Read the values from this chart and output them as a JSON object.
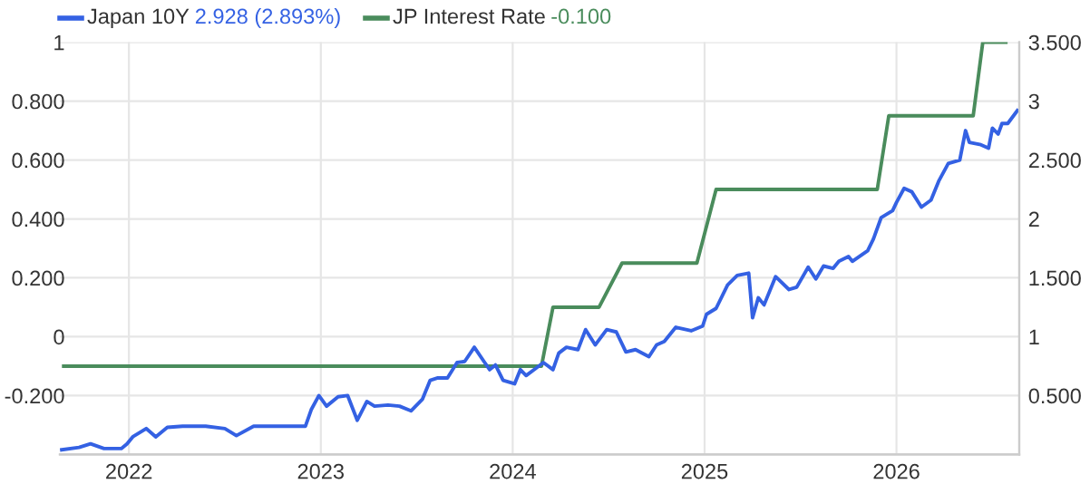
{
  "chart_data": {
    "type": "line",
    "series": [
      {
        "name": "Japan 10Y",
        "color": "#3461e3",
        "axis": "y2",
        "x": [
          2021.65,
          2021.74,
          2021.8,
          2021.87,
          2021.96,
          2021.99,
          2022.02,
          2022.09,
          2022.14,
          2022.2,
          2022.28,
          2022.4,
          2022.5,
          2022.56,
          2022.65,
          2022.78,
          2022.92,
          2022.95,
          2022.99,
          2023.03,
          2023.09,
          2023.14,
          2023.19,
          2023.24,
          2023.28,
          2023.35,
          2023.41,
          2023.47,
          2023.53,
          2023.57,
          2023.61,
          2023.66,
          2023.71,
          2023.75,
          2023.8,
          2023.85,
          2023.88,
          2023.91,
          2023.95,
          2024.01,
          2024.04,
          2024.07,
          2024.12,
          2024.16,
          2024.21,
          2024.24,
          2024.28,
          2024.34,
          2024.38,
          2024.43,
          2024.49,
          2024.54,
          2024.59,
          2024.64,
          2024.71,
          2024.75,
          2024.79,
          2024.85,
          2024.93,
          2024.99,
          2025.01,
          2025.06,
          2025.12,
          2025.17,
          2025.23,
          2025.25,
          2025.28,
          2025.31,
          2025.37,
          2025.44,
          2025.48,
          2025.54,
          2025.58,
          2025.62,
          2025.67,
          2025.7,
          2025.75,
          2025.77,
          2025.85,
          2025.88,
          2025.92,
          2025.98,
          2026.0,
          2026.04,
          2026.08,
          2026.13,
          2026.18,
          2026.22,
          2026.27,
          2026.33,
          2026.36,
          2026.38,
          2026.44,
          2026.48,
          2026.5,
          2026.53,
          2026.55,
          2026.58,
          2026.63
        ],
        "values": [
          0.04,
          0.06,
          0.09,
          0.05,
          0.05,
          0.09,
          0.15,
          0.22,
          0.15,
          0.23,
          0.24,
          0.24,
          0.22,
          0.16,
          0.24,
          0.24,
          0.24,
          0.38,
          0.5,
          0.41,
          0.49,
          0.5,
          0.29,
          0.45,
          0.41,
          0.42,
          0.41,
          0.37,
          0.47,
          0.63,
          0.65,
          0.65,
          0.78,
          0.79,
          0.91,
          0.79,
          0.72,
          0.76,
          0.63,
          0.6,
          0.72,
          0.67,
          0.73,
          0.78,
          0.72,
          0.86,
          0.91,
          0.89,
          1.06,
          0.93,
          1.06,
          1.04,
          0.87,
          0.89,
          0.83,
          0.93,
          0.96,
          1.08,
          1.05,
          1.09,
          1.19,
          1.24,
          1.44,
          1.52,
          1.54,
          1.16,
          1.33,
          1.27,
          1.51,
          1.4,
          1.42,
          1.59,
          1.49,
          1.6,
          1.58,
          1.64,
          1.68,
          1.64,
          1.73,
          1.83,
          2.01,
          2.07,
          2.14,
          2.26,
          2.23,
          2.1,
          2.16,
          2.32,
          2.47,
          2.5,
          2.75,
          2.65,
          2.63,
          2.6,
          2.77,
          2.72,
          2.81,
          2.81,
          2.92
        ]
      },
      {
        "name": "JP Interest Rate",
        "color": "#4a8c5c",
        "x": [
          2021.66,
          2024.15,
          2024.21,
          2024.45,
          2024.57,
          2024.96,
          2025.06,
          2025.9,
          2025.96,
          2026.4,
          2026.45,
          2026.57
        ],
        "values": [
          -0.1,
          -0.1,
          0.1,
          0.1,
          0.25,
          0.25,
          0.5,
          0.5,
          0.75,
          0.75,
          1.0,
          1.0
        ]
      }
    ],
    "annotations": [
      "2.928 (2.893%)",
      "-0.100"
    ],
    "xlim": [
      2021.64,
      2026.64
    ],
    "xticks": [
      2022,
      2023,
      2024,
      2025,
      2026
    ],
    "ylim": [
      -0.4,
      1
    ],
    "yticks": [
      {
        "value": -0.2,
        "label": "-0.200"
      },
      0,
      {
        "value": 0.2,
        "label": "0.200"
      },
      {
        "value": 0.4,
        "label": "0.400"
      },
      {
        "value": 0.6,
        "label": "0.600"
      },
      {
        "value": 0.8,
        "label": "0.800"
      },
      1
    ],
    "y2lim": [
      0,
      3.5
    ],
    "y2ticks": [
      {
        "value": 0.5,
        "label": "0.500"
      },
      1,
      {
        "value": 1.5,
        "label": "1.500"
      },
      2,
      {
        "value": 2.5,
        "label": "2.500"
      },
      3,
      {
        "value": 3.5,
        "label": "3.500"
      }
    ],
    "grid": true,
    "legend": "top left"
  }
}
